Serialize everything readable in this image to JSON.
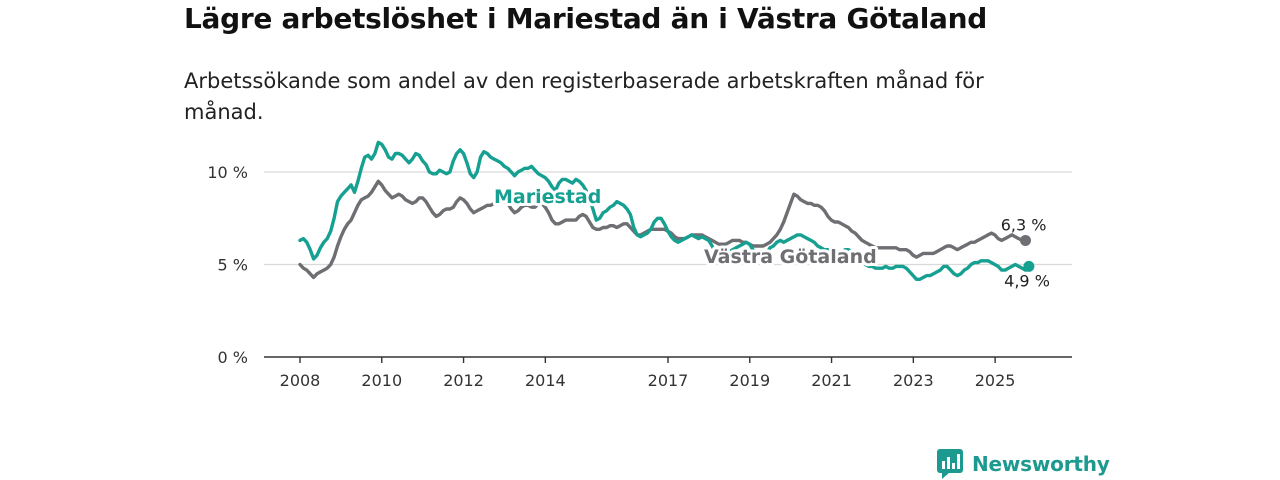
{
  "page": {
    "title": "Lägre arbetslöshet i Mariestad än i Västra Götaland",
    "subtitle": "Arbetssökande som andel av den registerbaserade arbetskraften månad för månad."
  },
  "brand": {
    "name": "Newsworthy",
    "icon": "newsworthy-logo-icon"
  },
  "colors": {
    "mariestad": "#16a092",
    "vastra_gotaland": "#6e6e73",
    "grid": "#d9d9d9",
    "axis": "#333333",
    "brand": "#1c9a8f"
  },
  "chart_data": {
    "type": "line",
    "title": "Lägre arbetslöshet i Mariestad än i Västra Götaland",
    "subtitle": "Arbetssökande som andel av den registerbaserade arbetskraften månad för månad.",
    "xlabel": "",
    "ylabel": "",
    "x_start": 2008.0,
    "x_end": 2026.0,
    "x_step_years": 0.0833,
    "xlim": [
      2008.0,
      2026.0
    ],
    "ylim": [
      0,
      12
    ],
    "y_ticks": [
      {
        "value": 0,
        "label": "0 %"
      },
      {
        "value": 5,
        "label": "5 %"
      },
      {
        "value": 10,
        "label": "10 %"
      }
    ],
    "x_ticks": [
      {
        "value": 2008,
        "label": "2008"
      },
      {
        "value": 2010,
        "label": "2010"
      },
      {
        "value": 2012,
        "label": "2012"
      },
      {
        "value": 2014,
        "label": "2014"
      },
      {
        "value": 2017,
        "label": "2017"
      },
      {
        "value": 2019,
        "label": "2019"
      },
      {
        "value": 2021,
        "label": "2021"
      },
      {
        "value": 2023,
        "label": "2023"
      },
      {
        "value": 2025,
        "label": "2025"
      }
    ],
    "series": [
      {
        "name": "Västra Götaland",
        "label": "Västra Götaland",
        "end_label": "6,3 %",
        "values": [
          5.0,
          4.8,
          4.7,
          4.5,
          4.3,
          4.5,
          4.6,
          4.7,
          4.8,
          5.0,
          5.4,
          6.0,
          6.5,
          6.9,
          7.2,
          7.4,
          7.8,
          8.2,
          8.5,
          8.6,
          8.7,
          8.9,
          9.2,
          9.5,
          9.3,
          9.0,
          8.8,
          8.6,
          8.7,
          8.8,
          8.7,
          8.5,
          8.4,
          8.3,
          8.4,
          8.6,
          8.6,
          8.4,
          8.1,
          7.8,
          7.6,
          7.7,
          7.9,
          8.0,
          8.0,
          8.1,
          8.4,
          8.6,
          8.5,
          8.3,
          8.0,
          7.8,
          7.9,
          8.0,
          8.1,
          8.2,
          8.2,
          8.3,
          8.5,
          8.5,
          8.4,
          8.3,
          8.0,
          7.8,
          7.9,
          8.1,
          8.2,
          8.2,
          8.1,
          8.1,
          8.3,
          8.3,
          8.1,
          7.8,
          7.4,
          7.2,
          7.2,
          7.3,
          7.4,
          7.4,
          7.4,
          7.4,
          7.6,
          7.7,
          7.6,
          7.3,
          7.0,
          6.9,
          6.9,
          7.0,
          7.0,
          7.1,
          7.1,
          7.0,
          7.1,
          7.2,
          7.2,
          7.0,
          6.8,
          6.6,
          6.6,
          6.7,
          6.8,
          6.9,
          6.9,
          6.9,
          6.9,
          6.9,
          6.8,
          6.7,
          6.5,
          6.4,
          6.4,
          6.4,
          6.5,
          6.6,
          6.6,
          6.6,
          6.6,
          6.5,
          6.4,
          6.3,
          6.2,
          6.1,
          6.1,
          6.1,
          6.2,
          6.3,
          6.3,
          6.3,
          6.2,
          6.2,
          6.1,
          6.0,
          6.0,
          6.0,
          6.0,
          6.1,
          6.2,
          6.4,
          6.6,
          6.9,
          7.3,
          7.8,
          8.3,
          8.8,
          8.7,
          8.5,
          8.4,
          8.3,
          8.3,
          8.2,
          8.2,
          8.1,
          7.9,
          7.6,
          7.4,
          7.3,
          7.3,
          7.2,
          7.1,
          7.0,
          6.8,
          6.7,
          6.5,
          6.3,
          6.2,
          6.1,
          6.0,
          5.9,
          5.9,
          5.9,
          5.9,
          5.9,
          5.9,
          5.9,
          5.8,
          5.8,
          5.8,
          5.7,
          5.5,
          5.4,
          5.5,
          5.6,
          5.6,
          5.6,
          5.6,
          5.7,
          5.8,
          5.9,
          6.0,
          6.0,
          5.9,
          5.8,
          5.9,
          6.0,
          6.1,
          6.2,
          6.2,
          6.3,
          6.4,
          6.5,
          6.6,
          6.7,
          6.6,
          6.4,
          6.3,
          6.4,
          6.5,
          6.6,
          6.5,
          6.4,
          6.3,
          6.3
        ]
      },
      {
        "name": "Mariestad",
        "label": "Mariestad",
        "end_label": "4,9 %",
        "values": [
          6.3,
          6.4,
          6.2,
          5.8,
          5.3,
          5.5,
          5.9,
          6.2,
          6.4,
          6.8,
          7.5,
          8.4,
          8.7,
          8.9,
          9.1,
          9.3,
          8.9,
          9.5,
          10.2,
          10.8,
          10.9,
          10.7,
          11.0,
          11.6,
          11.5,
          11.2,
          10.8,
          10.7,
          11.0,
          11.0,
          10.9,
          10.7,
          10.5,
          10.7,
          11.0,
          10.9,
          10.6,
          10.4,
          10.0,
          9.9,
          9.9,
          10.1,
          10.0,
          9.9,
          10.0,
          10.6,
          11.0,
          11.2,
          11.0,
          10.5,
          9.9,
          9.7,
          10.0,
          10.8,
          11.1,
          11.0,
          10.8,
          10.7,
          10.6,
          10.5,
          10.3,
          10.2,
          10.0,
          9.8,
          10.0,
          10.1,
          10.2,
          10.2,
          10.3,
          10.1,
          9.9,
          9.8,
          9.7,
          9.5,
          9.2,
          9.0,
          9.4,
          9.6,
          9.6,
          9.5,
          9.4,
          9.6,
          9.5,
          9.3,
          9.0,
          8.6,
          8.0,
          7.4,
          7.5,
          7.8,
          7.9,
          8.1,
          8.2,
          8.4,
          8.3,
          8.2,
          8.0,
          7.7,
          7.0,
          6.6,
          6.5,
          6.6,
          6.7,
          6.9,
          7.3,
          7.5,
          7.5,
          7.2,
          6.8,
          6.5,
          6.3,
          6.2,
          6.3,
          6.4,
          6.5,
          6.6,
          6.5,
          6.4,
          6.5,
          6.4,
          6.3,
          6.0,
          5.7,
          5.5,
          5.6,
          5.8,
          5.7,
          5.8,
          5.9,
          6.0,
          6.1,
          6.2,
          6.1,
          5.8,
          5.5,
          5.4,
          5.4,
          5.6,
          5.9,
          6.0,
          6.2,
          6.3,
          6.2,
          6.3,
          6.4,
          6.5,
          6.6,
          6.6,
          6.5,
          6.4,
          6.3,
          6.2,
          6.0,
          5.9,
          5.8,
          5.8,
          5.6,
          5.5,
          5.4,
          5.6,
          5.8,
          5.8,
          5.7,
          5.5,
          5.3,
          5.1,
          5.0,
          4.9,
          4.9,
          4.8,
          4.8,
          4.8,
          4.9,
          4.8,
          4.8,
          4.9,
          4.9,
          4.9,
          4.8,
          4.6,
          4.4,
          4.2,
          4.2,
          4.3,
          4.4,
          4.4,
          4.5,
          4.6,
          4.7,
          4.9,
          4.9,
          4.7,
          4.5,
          4.4,
          4.5,
          4.7,
          4.8,
          5.0,
          5.1,
          5.1,
          5.2,
          5.2,
          5.2,
          5.1,
          5.0,
          4.9,
          4.7,
          4.7,
          4.8,
          4.9,
          5.0,
          4.9,
          4.8,
          4.7,
          4.9
        ]
      }
    ],
    "label_note": "Series name labels are placed inside the plot near the series lines"
  }
}
